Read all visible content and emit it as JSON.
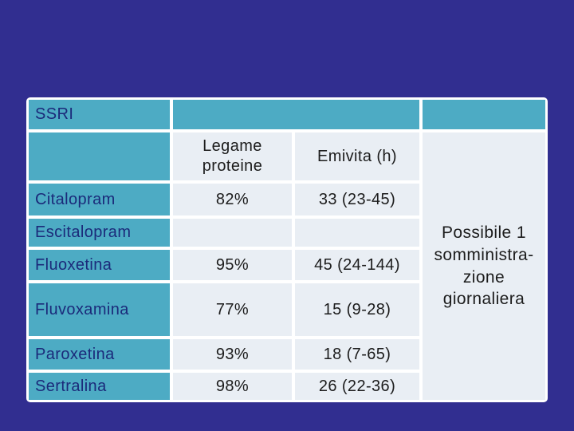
{
  "slide": {
    "background_color": "#312e90",
    "table": {
      "title_cell": "SSRI",
      "column_headers": {
        "binding": "Legame\nproteine",
        "half_life": "Emivita (h)"
      },
      "rows": [
        {
          "drug": "Citalopram",
          "binding": "82%",
          "half_life": "33 (23-45)"
        },
        {
          "drug": "Escitalopram",
          "binding": "",
          "half_life": ""
        },
        {
          "drug": "Fluoxetina",
          "binding": "95%",
          "half_life": "45 (24-144)"
        },
        {
          "drug": "Fluvoxamina",
          "binding": "77%",
          "half_life": "15 (9-28)"
        },
        {
          "drug": "Paroxetina",
          "binding": "93%",
          "half_life": "18 (7-65)"
        },
        {
          "drug": "Sertralina",
          "binding": "98%",
          "half_life": "26 (22-36)"
        }
      ],
      "note": "Possibile 1\nsomministra-\nzione\ngiornaliera"
    },
    "colors": {
      "background": "#312e90",
      "header_cell_fill": "#4dabc4",
      "data_cell_fill": "#e9eef4",
      "border": "#ffffff",
      "header_text": "#1b2a7a",
      "data_text": "#1c1c1c"
    }
  },
  "chart_data": {
    "type": "table",
    "title": "SSRI",
    "columns": [
      "SSRI",
      "Legame proteine",
      "Emivita (h)"
    ],
    "rows": [
      [
        "Citalopram",
        "82%",
        "33 (23-45)"
      ],
      [
        "Escitalopram",
        "",
        ""
      ],
      [
        "Fluoxetina",
        "95%",
        "45 (24-144)"
      ],
      [
        "Fluvoxamina",
        "77%",
        "15 (9-28)"
      ],
      [
        "Paroxetina",
        "93%",
        "18 (7-65)"
      ],
      [
        "Sertralina",
        "98%",
        "26 (22-36)"
      ]
    ],
    "annotation": "Possibile 1 somministrazione giornaliera"
  }
}
